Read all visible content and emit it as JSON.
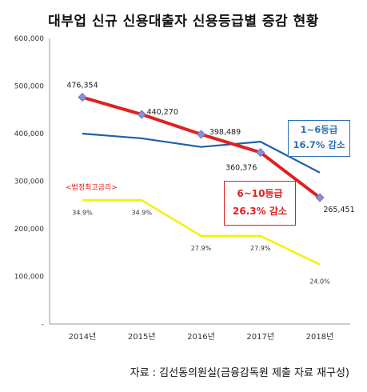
{
  "title": "대부업 신규 신용대출자 신용등급별 증감 현황",
  "source": "자료 : 김선동의원실(금융감독원 제출 자료 재구성)",
  "note": "<법정최고금리>",
  "blue_box": {
    "line1": "1~6등급",
    "line2": "16.7% 감소"
  },
  "red_box": {
    "line1": "6~10등급",
    "line2": "26.3% 감소"
  },
  "colors": {
    "red": "#e02020",
    "blue": "#1f5fa8",
    "yellow": "#f5f000",
    "marker": "#8a8fd8"
  },
  "chart_data": {
    "type": "line",
    "categories": [
      "2014년",
      "2015년",
      "2016년",
      "2017년",
      "2018년"
    ],
    "ylim": [
      0,
      600000
    ],
    "yticks": [
      "-",
      "100,000",
      "200,000",
      "300,000",
      "400,000",
      "500,000",
      "600,000"
    ],
    "ytick_values": [
      0,
      100000,
      200000,
      300000,
      400000,
      500000,
      600000
    ],
    "series": [
      {
        "name": "6~10등급",
        "values": [
          476354,
          440270,
          398489,
          360376,
          265451
        ],
        "labels": [
          "476,354",
          "440,270",
          "398,489",
          "360,376",
          "265,451"
        ]
      },
      {
        "name": "1~6등급",
        "values": [
          400000,
          390000,
          372000,
          383000,
          318000
        ]
      },
      {
        "name": "법정최고금리",
        "values": [
          260000,
          260000,
          185000,
          185000,
          125000
        ],
        "labels": [
          "34.9%",
          "34.9%",
          "27.9%",
          "27.9%",
          "24.0%"
        ]
      }
    ]
  }
}
